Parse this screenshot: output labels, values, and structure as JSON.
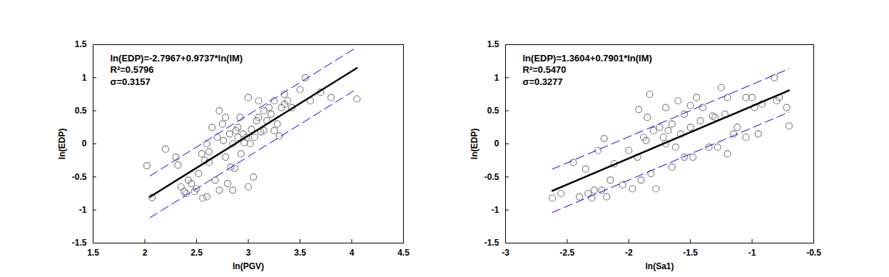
{
  "chart_data": [
    {
      "type": "scatter",
      "x_label": "ln(PGV)",
      "y_label": "ln(EDP)",
      "annotations": [
        "ln(EDP)=-2.7967+0.9737*ln(IM)",
        "R²=0.5796",
        "σ=0.3157"
      ],
      "xlim": [
        1.5,
        4.5
      ],
      "xticks": [
        1.5,
        2,
        2.5,
        3,
        3.5,
        4,
        4.5
      ],
      "ylim": [
        -1.5,
        1.5
      ],
      "yticks": [
        -1.5,
        -1,
        -0.5,
        0,
        0.5,
        1,
        1.5
      ],
      "series": [
        {
          "type": "scatter",
          "color": "#808080",
          "marker": "circle",
          "x": [
            2.02,
            2.07,
            2.2,
            2.3,
            2.32,
            2.35,
            2.38,
            2.4,
            2.42,
            2.45,
            2.48,
            2.5,
            2.52,
            2.55,
            2.56,
            2.58,
            2.6,
            2.6,
            2.62,
            2.62,
            2.65,
            2.68,
            2.7,
            2.72,
            2.72,
            2.75,
            2.76,
            2.78,
            2.78,
            2.8,
            2.82,
            2.83,
            2.85,
            2.85,
            2.87,
            2.88,
            2.9,
            2.9,
            2.92,
            2.93,
            2.95,
            2.96,
            2.98,
            3.0,
            3.0,
            3.02,
            3.03,
            3.05,
            3.06,
            3.08,
            3.1,
            3.1,
            3.12,
            3.15,
            3.15,
            3.18,
            3.2,
            3.22,
            3.25,
            3.25,
            3.28,
            3.3,
            3.32,
            3.35,
            3.35,
            3.38,
            3.42,
            3.5,
            3.55,
            3.6,
            3.7,
            3.8,
            4.05
          ],
          "values": [
            -0.33,
            -0.81,
            -0.08,
            -0.2,
            -0.32,
            -0.65,
            -0.72,
            -0.75,
            -0.55,
            -0.6,
            -0.72,
            -0.68,
            -0.45,
            -0.15,
            -0.82,
            -0.25,
            -0.8,
            0.0,
            -0.12,
            -0.28,
            0.25,
            -0.55,
            0.1,
            0.5,
            -0.7,
            0.3,
            0.05,
            0.4,
            -0.2,
            -0.6,
            0.15,
            -0.35,
            0.0,
            -0.7,
            -0.37,
            0.2,
            0.25,
            0.1,
            0.4,
            -0.15,
            0.15,
            0.02,
            0.1,
            -0.65,
            0.7,
            0.0,
            0.22,
            -0.5,
            0.1,
            0.35,
            0.65,
            0.4,
            0.18,
            0.2,
            0.5,
            0.35,
            0.55,
            0.45,
            0.65,
            0.2,
            0.3,
            0.12,
            0.55,
            0.75,
            0.6,
            0.65,
            0.55,
            0.82,
            1.0,
            0.65,
            0.78,
            0.7,
            0.68
          ]
        },
        {
          "type": "line",
          "color": "#000000",
          "line_style": "solid",
          "x": [
            2.05,
            4.05
          ],
          "values": [
            -0.8006,
            1.1468
          ]
        },
        {
          "type": "line",
          "color": "#0000ff",
          "line_style": "dashed",
          "x": [
            2.05,
            4.05
          ],
          "values": [
            -0.4849,
            1.4625
          ]
        },
        {
          "type": "line",
          "color": "#0000ff",
          "line_style": "dashed",
          "x": [
            2.05,
            4.05
          ],
          "values": [
            -1.1163,
            0.8311
          ]
        }
      ]
    },
    {
      "type": "scatter",
      "x_label": "ln(Sa1)",
      "y_label": "ln(EDP)",
      "annotations": [
        "ln(EDP)=1.3604+0.7901*ln(IM)",
        "R²=0.5470",
        "σ=0.3277"
      ],
      "xlim": [
        -3,
        -0.5
      ],
      "xticks": [
        -3,
        -2.5,
        -2,
        -1.5,
        -1,
        -0.5
      ],
      "ylim": [
        -1.5,
        1.5
      ],
      "yticks": [
        -1.5,
        -1,
        -0.5,
        0,
        0.5,
        1,
        1.5
      ],
      "series": [
        {
          "type": "scatter",
          "color": "#808080",
          "marker": "circle",
          "x": [
            -2.62,
            -2.55,
            -2.45,
            -2.4,
            -2.35,
            -2.33,
            -2.3,
            -2.28,
            -2.25,
            -2.22,
            -2.2,
            -2.18,
            -2.15,
            -2.12,
            -2.05,
            -2.0,
            -1.97,
            -1.93,
            -1.92,
            -1.9,
            -1.88,
            -1.86,
            -1.85,
            -1.83,
            -1.82,
            -1.8,
            -1.78,
            -1.75,
            -1.72,
            -1.7,
            -1.7,
            -1.68,
            -1.65,
            -1.65,
            -1.62,
            -1.6,
            -1.58,
            -1.55,
            -1.55,
            -1.5,
            -1.5,
            -1.48,
            -1.45,
            -1.42,
            -1.4,
            -1.35,
            -1.32,
            -1.3,
            -1.28,
            -1.25,
            -1.22,
            -1.2,
            -1.2,
            -1.15,
            -1.12,
            -1.05,
            -1.05,
            -1.0,
            -0.98,
            -0.95,
            -0.92,
            -0.82,
            -0.8,
            -0.78,
            -0.72,
            -0.7
          ],
          "values": [
            -0.82,
            -0.75,
            -0.28,
            -0.8,
            -0.38,
            -0.75,
            -0.82,
            -0.7,
            -0.1,
            -0.7,
            0.08,
            -0.8,
            -0.55,
            -0.3,
            -0.62,
            -0.1,
            -0.68,
            -0.2,
            0.52,
            -0.55,
            0.1,
            0.05,
            0.4,
            0.75,
            -0.45,
            0.2,
            -0.68,
            0.25,
            0.1,
            0.55,
            0.0,
            0.2,
            0.3,
            -0.35,
            -0.05,
            0.65,
            0.15,
            -0.2,
            0.45,
            0.58,
            0.25,
            -0.2,
            0.7,
            0.35,
            0.55,
            -0.05,
            0.42,
            0.4,
            -0.05,
            0.85,
            0.45,
            0.7,
            -0.15,
            0.15,
            0.25,
            0.7,
            0.1,
            0.7,
            0.55,
            0.15,
            0.6,
            1.0,
            0.65,
            0.7,
            0.55,
            0.27
          ]
        },
        {
          "type": "line",
          "color": "#000000",
          "line_style": "solid",
          "x": [
            -2.62,
            -0.7
          ],
          "values": [
            -0.7097,
            0.8073
          ]
        },
        {
          "type": "line",
          "color": "#0000ff",
          "line_style": "dashed",
          "x": [
            -2.62,
            -0.7
          ],
          "values": [
            -0.382,
            1.135
          ]
        },
        {
          "type": "line",
          "color": "#0000ff",
          "line_style": "dashed",
          "x": [
            -2.62,
            -0.7
          ],
          "values": [
            -1.0374,
            0.4796
          ]
        }
      ]
    }
  ]
}
